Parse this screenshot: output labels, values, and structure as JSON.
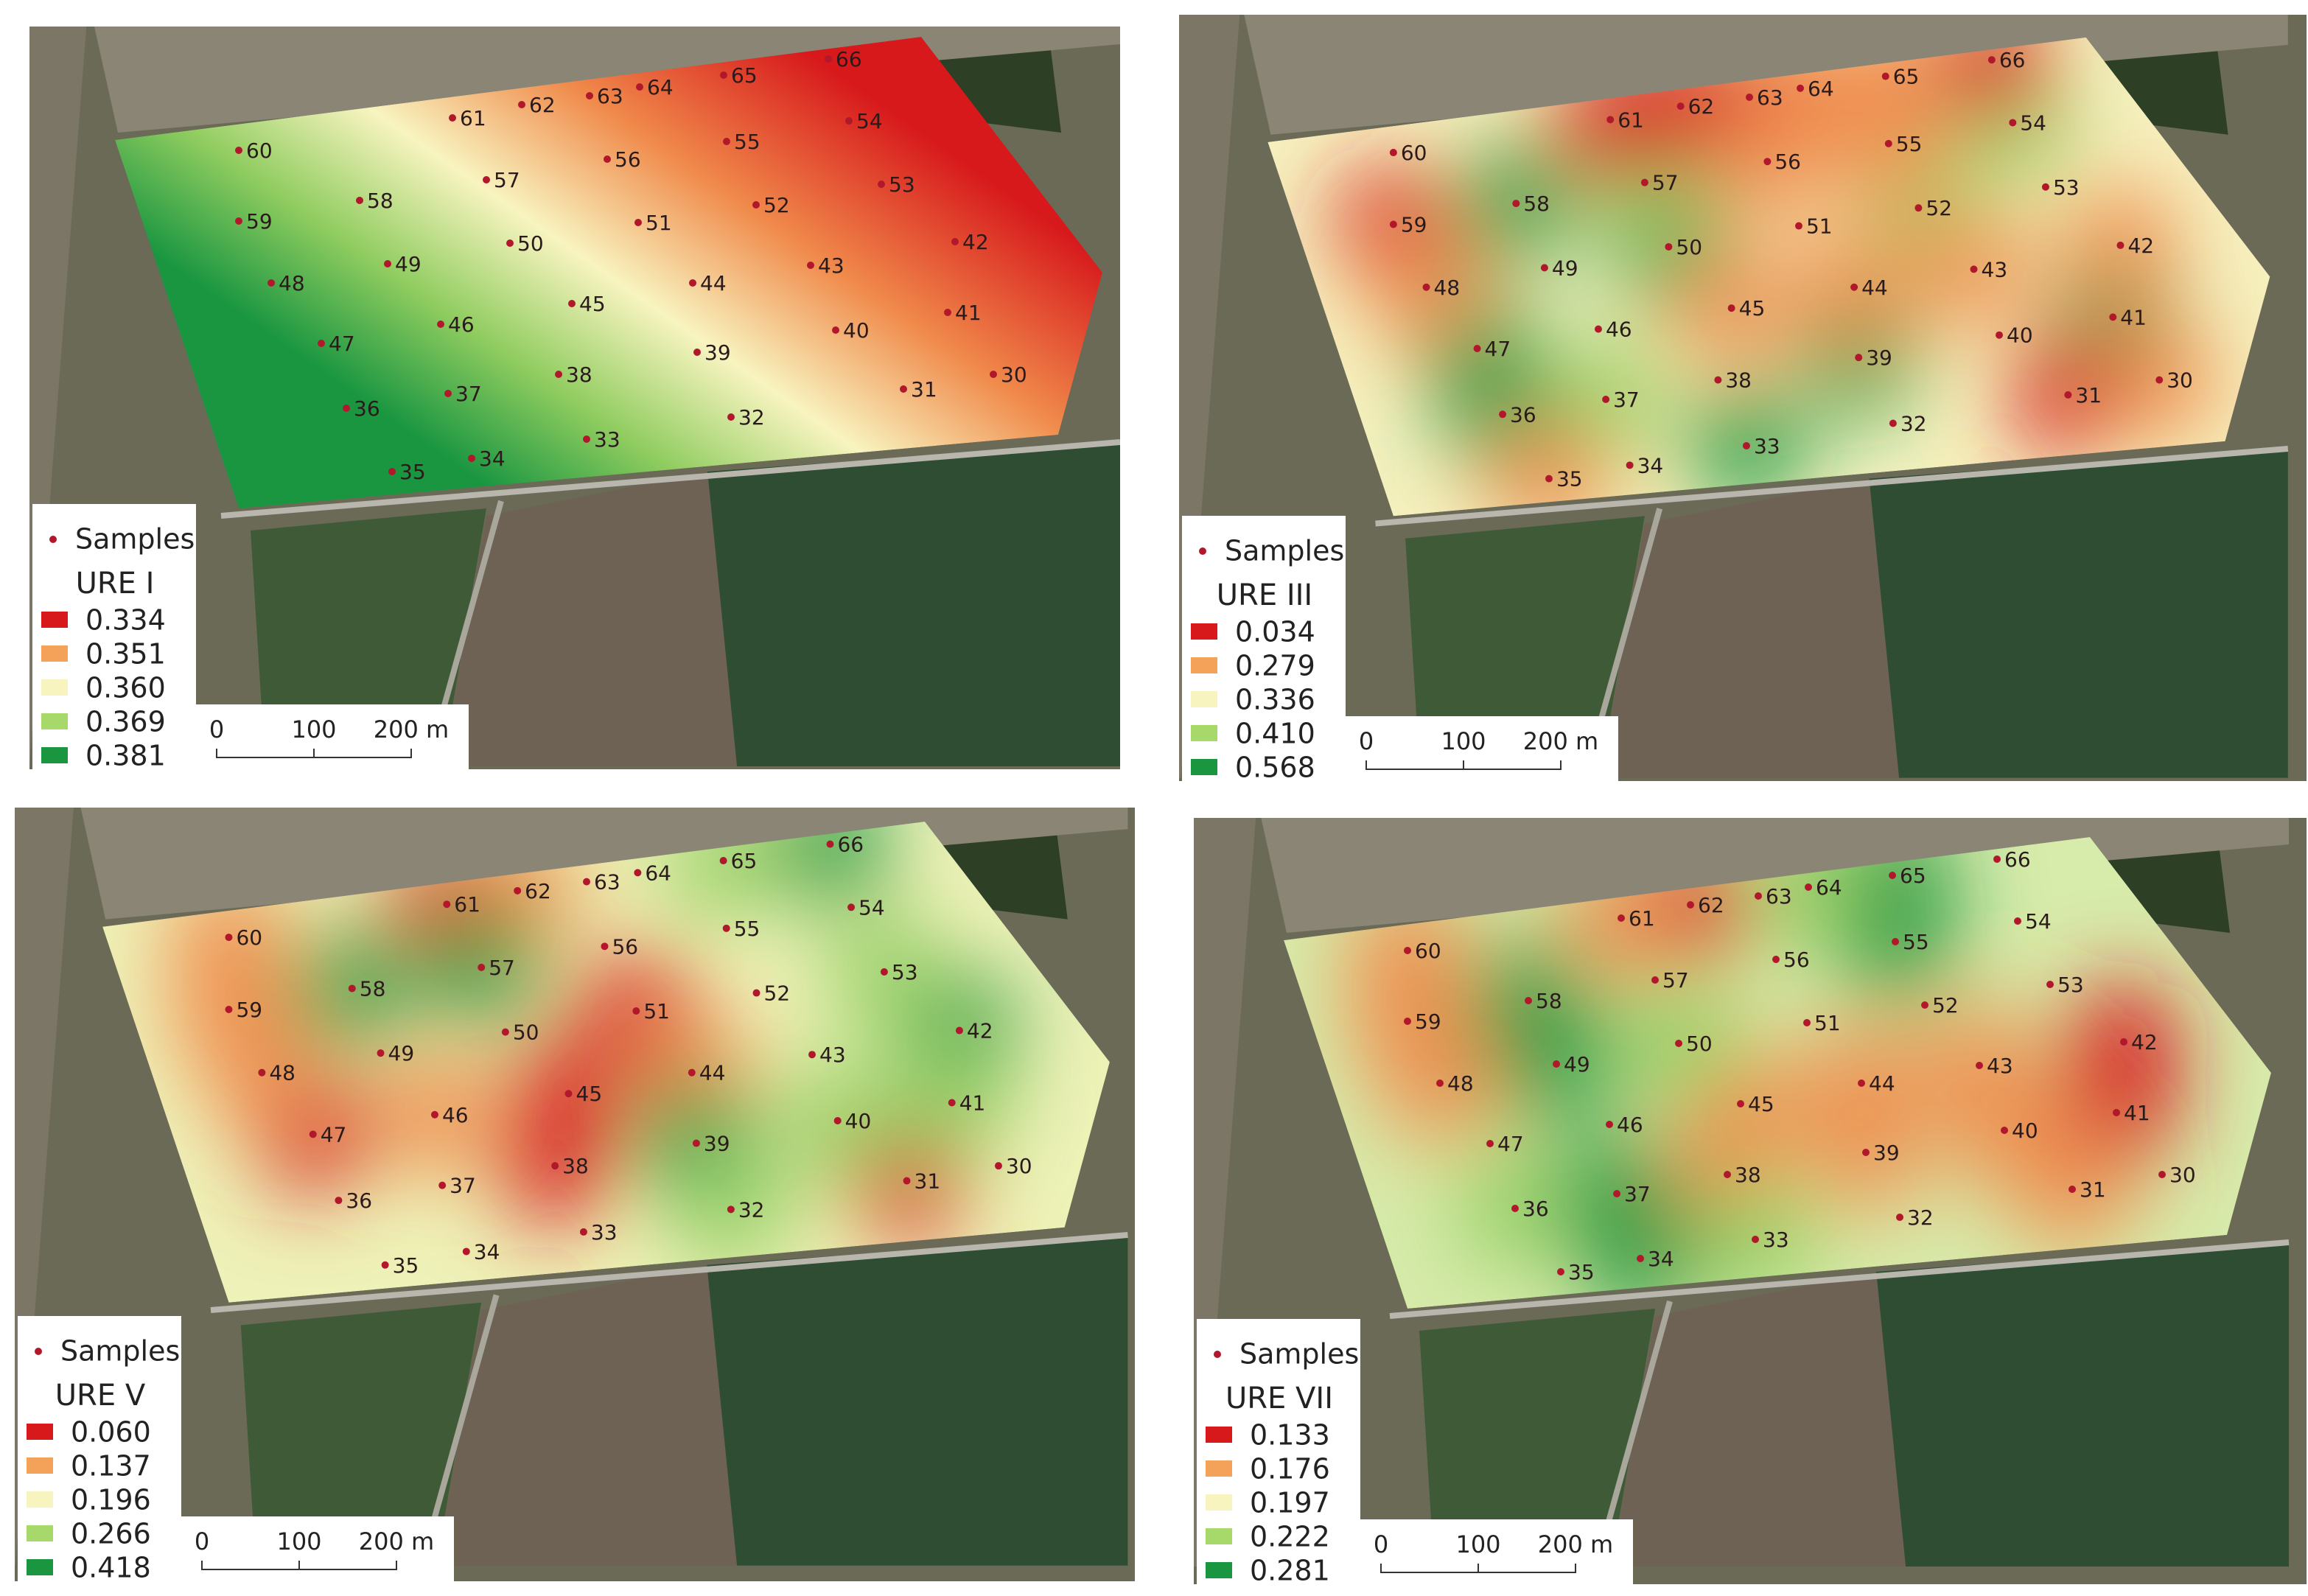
{
  "sample_ids": [
    "30",
    "31",
    "32",
    "33",
    "34",
    "35",
    "36",
    "37",
    "38",
    "39",
    "40",
    "41",
    "42",
    "43",
    "44",
    "45",
    "46",
    "47",
    "48",
    "49",
    "50",
    "51",
    "52",
    "53",
    "54",
    "55",
    "56",
    "57",
    "58",
    "59",
    "60",
    "61",
    "62",
    "63",
    "64",
    "65",
    "66"
  ],
  "panels": [
    {
      "legend": {
        "samples": "Samples",
        "title": "URE I",
        "items": [
          {
            "label": "0.334",
            "color": "#d7191c"
          },
          {
            "label": "0.351",
            "color": "#f4a259"
          },
          {
            "label": "0.360",
            "color": "#f8f4c0"
          },
          {
            "label": "0.369",
            "color": "#a6d96a"
          },
          {
            "label": "0.381",
            "color": "#1a9641"
          }
        ]
      },
      "scale_bar": [
        "0",
        "100",
        "200 m"
      ]
    },
    {
      "legend": {
        "samples": "Samples",
        "title": "URE III",
        "items": [
          {
            "label": "0.034",
            "color": "#d7191c"
          },
          {
            "label": "0.279",
            "color": "#f4a259"
          },
          {
            "label": "0.336",
            "color": "#f8f4c0"
          },
          {
            "label": "0.410",
            "color": "#a6d96a"
          },
          {
            "label": "0.568",
            "color": "#1a9641"
          }
        ]
      },
      "scale_bar": [
        "0",
        "100",
        "200 m"
      ]
    },
    {
      "legend": {
        "samples": "Samples",
        "title": "URE V",
        "items": [
          {
            "label": "0.060",
            "color": "#d7191c"
          },
          {
            "label": "0.137",
            "color": "#f4a259"
          },
          {
            "label": "0.196",
            "color": "#f8f4c0"
          },
          {
            "label": "0.266",
            "color": "#a6d96a"
          },
          {
            "label": "0.418",
            "color": "#1a9641"
          }
        ]
      },
      "scale_bar": [
        "0",
        "100",
        "200 m"
      ]
    },
    {
      "legend": {
        "samples": "Samples",
        "title": "URE VII",
        "items": [
          {
            "label": "0.133",
            "color": "#d7191c"
          },
          {
            "label": "0.176",
            "color": "#f4a259"
          },
          {
            "label": "0.197",
            "color": "#f8f4c0"
          },
          {
            "label": "0.222",
            "color": "#a6d96a"
          },
          {
            "label": "0.281",
            "color": "#1a9641"
          }
        ]
      },
      "scale_bar": [
        "0",
        "100",
        "200 m"
      ]
    }
  ]
}
